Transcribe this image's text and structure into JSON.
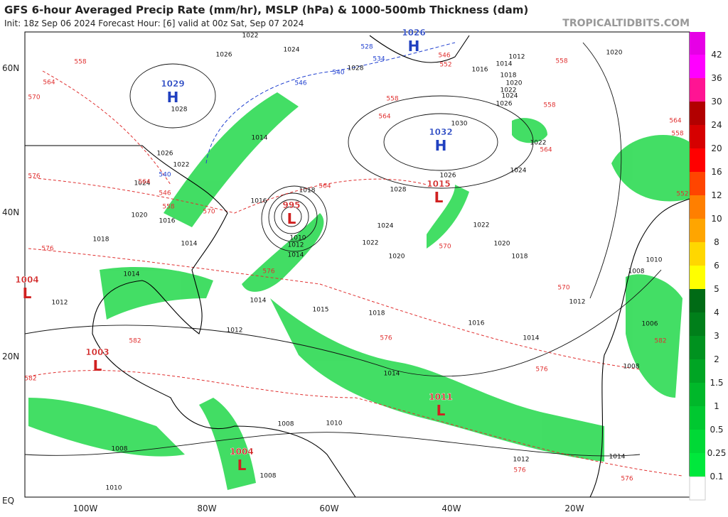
{
  "header": {
    "title": "GFS 6-hour Averaged Precip Rate (mm/hr), MSLP (hPa) & 1000-500mb Thickness (dam)",
    "subtitle": "Init: 18z Sep 06 2024   Forecast Hour: [6]   valid at 00z Sat, Sep 07 2024",
    "credit": "TROPICALTIDBITS.COM"
  },
  "map": {
    "lat_labels": [
      "60N",
      "40N",
      "20N",
      "EQ"
    ],
    "lon_labels": [
      "100W",
      "80W",
      "60W",
      "40W",
      "20W"
    ],
    "centers": [
      {
        "letter": "H",
        "pressure": "1029"
      },
      {
        "letter": "L",
        "pressure": "995"
      },
      {
        "letter": "H",
        "pressure": "1032"
      },
      {
        "letter": "L",
        "pressure": "1015"
      },
      {
        "letter": "L",
        "pressure": "1004"
      },
      {
        "letter": "L",
        "pressure": "1003"
      },
      {
        "letter": "L",
        "pressure": "1011"
      },
      {
        "letter": "L",
        "pressure": "1004"
      },
      {
        "letter": "H",
        "pressure": "1026"
      }
    ],
    "isobar_labels": [
      "1026",
      "1022",
      "1024",
      "1028",
      "1012",
      "1014",
      "1016",
      "1018",
      "1020",
      "1022",
      "1024",
      "1026",
      "1030",
      "1020",
      "1028",
      "1026",
      "1022",
      "1024",
      "1020",
      "1016",
      "1018",
      "1014",
      "1014",
      "1012",
      "1014",
      "1012",
      "1015",
      "1018",
      "1016",
      "1014",
      "1014",
      "1012",
      "1008",
      "1010",
      "1008",
      "1006",
      "1008",
      "1010",
      "1008",
      "1010",
      "1008",
      "1012",
      "1014",
      "1022",
      "1020",
      "1018",
      "1024",
      "1022",
      "1020",
      "1028",
      "1026",
      "1024",
      "1022",
      "1014",
      "1016",
      "1018",
      "1010",
      "1012",
      "1014"
    ],
    "thickness_labels": [
      "558",
      "564",
      "570",
      "576",
      "582",
      "546",
      "552",
      "558",
      "558",
      "564",
      "564",
      "558",
      "564",
      "570",
      "576",
      "576",
      "576",
      "576",
      "576",
      "570",
      "582",
      "576",
      "564",
      "546",
      "558",
      "570",
      "552",
      "564",
      "558",
      "582",
      "528",
      "534",
      "540",
      "540",
      "546"
    ]
  },
  "colorbar": {
    "levels": [
      "0.1",
      "0.25",
      "0.5",
      "1",
      "1.5",
      "2",
      "3",
      "4",
      "5",
      "6",
      "8",
      "10",
      "12",
      "16",
      "20",
      "24",
      "30",
      "36",
      "42"
    ],
    "colors": [
      "#ffffff",
      "#00e83c",
      "#00d936",
      "#00c830",
      "#00b82a",
      "#00a524",
      "#00921f",
      "#007f1a",
      "#006b15",
      "#ffff00",
      "#ffd700",
      "#ffa500",
      "#ff7f00",
      "#ff4500",
      "#ff0000",
      "#d60000",
      "#b20000",
      "#ff1493",
      "#ff00ff",
      "#e600e6"
    ]
  }
}
